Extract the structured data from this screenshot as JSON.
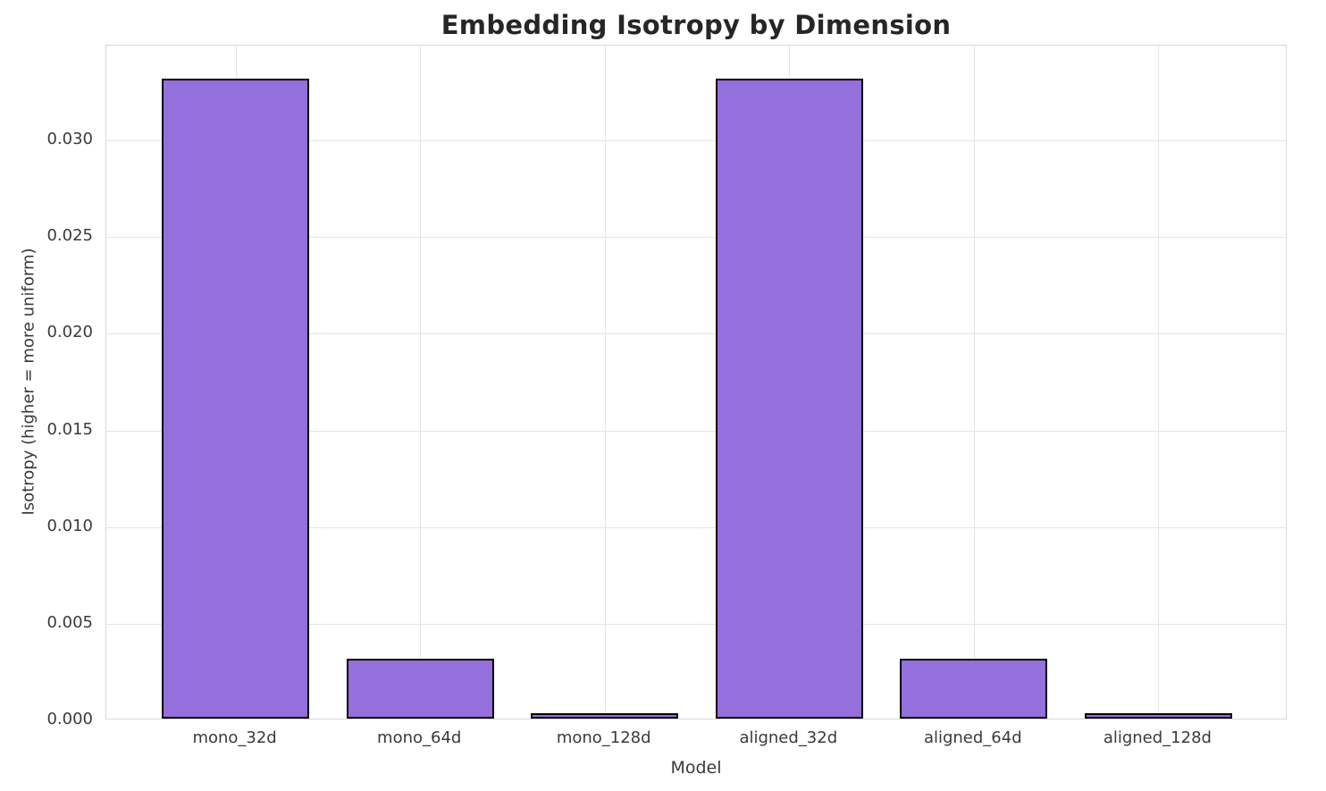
{
  "chart_data": {
    "type": "bar",
    "title": "Embedding Isotropy by Dimension",
    "xlabel": "Model",
    "ylabel": "Isotropy (higher = more uniform)",
    "categories": [
      "mono_32d",
      "mono_64d",
      "mono_128d",
      "aligned_32d",
      "aligned_64d",
      "aligned_128d"
    ],
    "values": [
      0.0331,
      0.0031,
      0.0003,
      0.0331,
      0.0031,
      0.0003
    ],
    "ylim": [
      0,
      0.0349
    ],
    "yticks": [
      0,
      0.005,
      0.01,
      0.015,
      0.02,
      0.025,
      0.03
    ],
    "ytick_labels": [
      "0.000",
      "0.005",
      "0.010",
      "0.015",
      "0.020",
      "0.025",
      "0.030"
    ],
    "grid": true,
    "legend": false,
    "bar_color": "#9370DB",
    "bar_edge_color": "#000000",
    "grid_color": "#e4e4e4",
    "background": "#ffffff",
    "title_color": "#262626",
    "tick_color": "#3a3a3a"
  }
}
